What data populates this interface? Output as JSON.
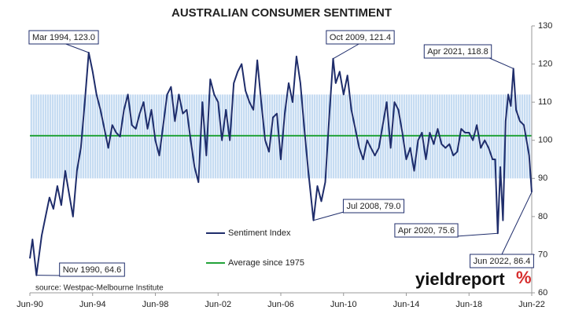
{
  "chart_data": {
    "type": "line",
    "title": "AUSTRALIAN CONSUMER SENTIMENT",
    "x": [
      "1990-06",
      "1990-08",
      "1990-11",
      "1991-03",
      "1991-06",
      "1991-09",
      "1991-12",
      "1992-03",
      "1992-06",
      "1992-09",
      "1992-12",
      "1993-03",
      "1993-06",
      "1993-09",
      "1993-12",
      "1994-03",
      "1994-06",
      "1994-09",
      "1994-12",
      "1995-03",
      "1995-06",
      "1995-09",
      "1995-12",
      "1996-03",
      "1996-06",
      "1996-09",
      "1996-12",
      "1997-03",
      "1997-06",
      "1997-09",
      "1997-12",
      "1998-03",
      "1998-06",
      "1998-09",
      "1998-12",
      "1999-03",
      "1999-06",
      "1999-09",
      "1999-12",
      "2000-03",
      "2000-06",
      "2000-09",
      "2000-12",
      "2001-03",
      "2001-06",
      "2001-09",
      "2001-12",
      "2002-03",
      "2002-06",
      "2002-09",
      "2002-12",
      "2003-03",
      "2003-06",
      "2003-09",
      "2003-12",
      "2004-03",
      "2004-06",
      "2004-09",
      "2004-12",
      "2005-03",
      "2005-06",
      "2005-09",
      "2005-12",
      "2006-03",
      "2006-06",
      "2006-09",
      "2006-12",
      "2007-03",
      "2007-06",
      "2007-09",
      "2007-12",
      "2008-03",
      "2008-07",
      "2008-10",
      "2009-01",
      "2009-04",
      "2009-07",
      "2009-10",
      "2009-12",
      "2010-03",
      "2010-06",
      "2010-09",
      "2010-12",
      "2011-03",
      "2011-06",
      "2011-09",
      "2011-12",
      "2012-03",
      "2012-06",
      "2012-09",
      "2012-12",
      "2013-03",
      "2013-06",
      "2013-09",
      "2013-12",
      "2014-03",
      "2014-06",
      "2014-09",
      "2014-12",
      "2015-03",
      "2015-06",
      "2015-09",
      "2015-12",
      "2016-03",
      "2016-06",
      "2016-09",
      "2016-12",
      "2017-03",
      "2017-06",
      "2017-09",
      "2017-12",
      "2018-03",
      "2018-06",
      "2018-09",
      "2018-12",
      "2019-03",
      "2019-06",
      "2019-09",
      "2019-12",
      "2020-02",
      "2020-04",
      "2020-06",
      "2020-08",
      "2020-10",
      "2020-12",
      "2021-02",
      "2021-04",
      "2021-06",
      "2021-09",
      "2021-12",
      "2022-02",
      "2022-04",
      "2022-06"
    ],
    "series": [
      {
        "name": "Sentiment Index",
        "color": "#1f2d6b",
        "values": [
          69,
          74,
          64.6,
          75,
          80,
          85,
          82,
          88,
          83,
          92,
          86,
          80,
          92,
          98,
          110,
          123.0,
          118,
          112,
          108,
          103,
          98,
          104,
          102,
          101,
          108,
          112,
          104,
          103,
          107,
          110,
          103,
          108,
          100,
          96,
          104,
          112,
          114,
          105,
          112,
          107,
          108,
          100,
          93,
          89,
          110,
          96,
          116,
          112,
          110,
          100,
          108,
          100,
          115,
          118,
          120,
          113,
          110,
          108,
          121,
          110,
          100,
          97,
          106,
          107,
          95,
          107,
          115,
          110,
          122,
          115,
          103,
          92,
          79.0,
          88,
          84,
          89,
          106,
          121.4,
          115,
          118,
          112,
          117,
          108,
          103,
          98,
          95,
          100,
          98,
          96,
          98,
          104,
          110,
          98,
          110,
          108,
          102,
          95,
          98,
          92,
          100,
          102,
          95,
          102,
          99,
          103,
          99,
          98,
          99,
          96,
          97,
          103,
          102,
          102,
          100,
          104,
          98,
          100,
          98,
          95,
          95,
          75.6,
          93,
          79,
          105,
          112,
          109,
          118.8,
          108,
          105,
          104,
          100,
          96,
          86.4
        ]
      }
    ],
    "reference_line": {
      "name": "Average since 1975",
      "color": "#22a33a",
      "value": 101.2
    },
    "shaded_range": {
      "color": "#9fc3e8",
      "ylim": [
        90,
        112
      ]
    },
    "xlim": [
      "1990-06",
      "2022-06"
    ],
    "xticks": [
      {
        "value": "1990-06",
        "label": "Jun-90"
      },
      {
        "value": "1994-06",
        "label": "Jun-94"
      },
      {
        "value": "1998-06",
        "label": "Jun-98"
      },
      {
        "value": "2002-06",
        "label": "Jun-02"
      },
      {
        "value": "2006-06",
        "label": "Jun-06"
      },
      {
        "value": "2010-06",
        "label": "Jun-10"
      },
      {
        "value": "2014-06",
        "label": "Jun-14"
      },
      {
        "value": "2018-06",
        "label": "Jun-18"
      },
      {
        "value": "2022-06",
        "label": "Jun-22"
      }
    ],
    "ylim": [
      60,
      130
    ],
    "yticks": [
      60,
      70,
      80,
      90,
      100,
      110,
      120,
      130
    ],
    "annotations": [
      {
        "text": "Mar 1994, 123.0",
        "x": "1994-03",
        "y": 123.0
      },
      {
        "text": "Oct 2009, 121.4",
        "x": "2009-10",
        "y": 121.4
      },
      {
        "text": "Apr 2021, 118.8",
        "x": "2021-04",
        "y": 118.8
      },
      {
        "text": "Jul 2008, 79.0",
        "x": "2008-07",
        "y": 79.0
      },
      {
        "text": "Apr 2020, 75.6",
        "x": "2020-04",
        "y": 75.6
      },
      {
        "text": "Nov 1990, 64.6",
        "x": "1990-11",
        "y": 64.6
      },
      {
        "text": "Jun 2022, 86.4",
        "x": "2022-06",
        "y": 86.4
      }
    ],
    "source": "source: Westpac-Melbourne Institute",
    "logo": "yieldreport",
    "logo_mark": "%"
  }
}
